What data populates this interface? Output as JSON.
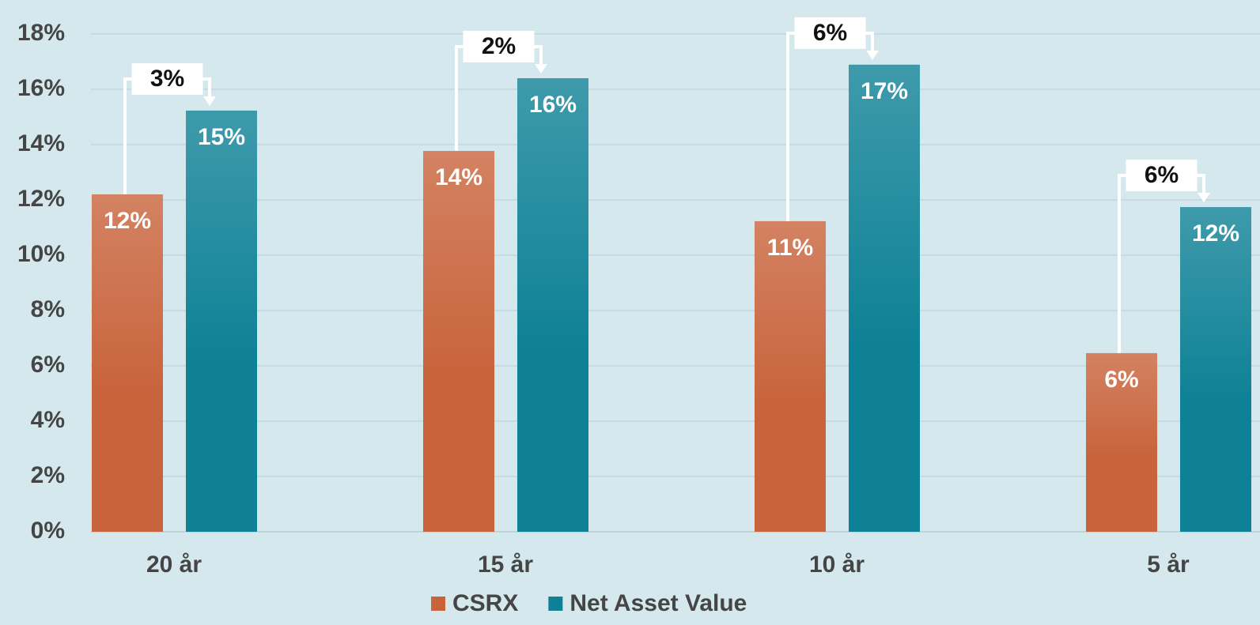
{
  "chart_data": {
    "type": "bar",
    "categories": [
      "20 år",
      "15 år",
      "10 år",
      "5 år"
    ],
    "series": [
      {
        "name": "CSRX",
        "color": "#c8633b",
        "values": [
          12.2,
          13.77,
          11.23,
          6.46
        ],
        "value_labels": [
          "12%",
          "14%",
          "11%",
          "6%"
        ]
      },
      {
        "name": "Net Asset Value",
        "color": "#0e8196",
        "values": [
          15.23,
          16.4,
          16.89,
          11.74
        ],
        "value_labels": [
          "15%",
          "16%",
          "17%",
          "12%"
        ]
      }
    ],
    "annotations": [
      "3%",
      "2%",
      "6%",
      "6%"
    ],
    "ylim": [
      0,
      18
    ],
    "yticks": [
      {
        "value": 0,
        "label": "0%"
      },
      {
        "value": 2,
        "label": "2%"
      },
      {
        "value": 4,
        "label": "4%"
      },
      {
        "value": 6,
        "label": "6%"
      },
      {
        "value": 8,
        "label": "8%"
      },
      {
        "value": 10,
        "label": "10%"
      },
      {
        "value": 12,
        "label": "12%"
      },
      {
        "value": 14,
        "label": "14%"
      },
      {
        "value": 16,
        "label": "16%"
      },
      {
        "value": 18,
        "label": "18%"
      }
    ],
    "grid": true
  }
}
